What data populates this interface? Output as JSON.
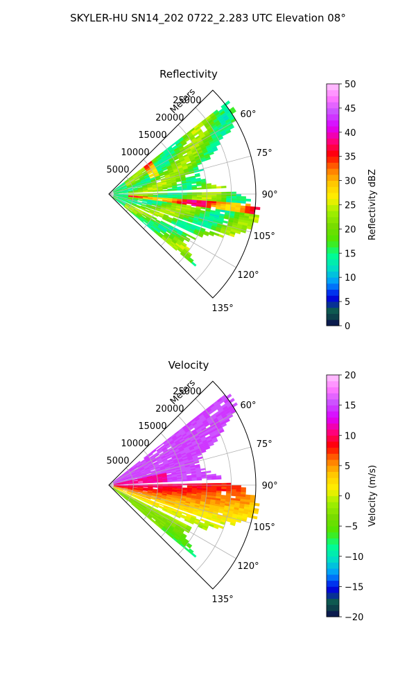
{
  "figure": {
    "suptitle": "SKYLER-HU  SN14_202  0722_2.283 UTC Elevation 08°"
  },
  "chart_data": [
    {
      "type": "polar-sector",
      "title": "Reflectivity",
      "radial_label": "Meters",
      "radial_ticks": [
        5000,
        10000,
        15000,
        20000,
        25000
      ],
      "radial_tick_labels": [
        "5000",
        "10000",
        "15000",
        "20000",
        "25000"
      ],
      "rlim": [
        0,
        30000
      ],
      "theta_range_deg": [
        45,
        135
      ],
      "theta_zero": "north",
      "theta_direction": "clockwise",
      "theta_ticks": [
        60,
        75,
        90,
        105,
        120,
        135
      ],
      "theta_tick_labels": [
        "60°",
        "75°",
        "90°",
        "105°",
        "120°",
        "135°"
      ],
      "grid": true,
      "data_coverage_deg": [
        52,
        130
      ],
      "field_pattern": "mostly 15-25 dBZ; higher 25-40 dBZ cells near 10000 m and along ~96°",
      "beam_gaps_deg": [
        88,
        109.5,
        116
      ],
      "colorbar": {
        "label": "Reflectivity dBZ",
        "range": [
          0,
          50
        ],
        "ticks": [
          0,
          5,
          10,
          15,
          20,
          25,
          30,
          35,
          40,
          45,
          50
        ],
        "tick_labels": [
          "0",
          "5",
          "10",
          "15",
          "20",
          "25",
          "30",
          "35",
          "40",
          "45",
          "50"
        ],
        "levels": 40,
        "colors": [
          "#0a0a50",
          "#0f5f46",
          "#0000e6",
          "#0096ff",
          "#00dcc8",
          "#00ff90",
          "#50e600",
          "#78dc00",
          "#a0f000",
          "#fff000",
          "#ffc800",
          "#ff7800",
          "#ff0000",
          "#ff0080",
          "#dc00ff",
          "#c850ff",
          "#ff78ff",
          "#ffc8ff"
        ]
      }
    },
    {
      "type": "polar-sector",
      "title": "Velocity",
      "radial_label": "Meters",
      "radial_ticks": [
        5000,
        10000,
        15000,
        20000,
        25000
      ],
      "radial_tick_labels": [
        "5000",
        "10000",
        "15000",
        "20000",
        "25000"
      ],
      "rlim": [
        0,
        30000
      ],
      "theta_range_deg": [
        45,
        135
      ],
      "theta_zero": "north",
      "theta_direction": "clockwise",
      "theta_ticks": [
        60,
        75,
        90,
        105,
        120,
        135
      ],
      "theta_tick_labels": [
        "60°",
        "75°",
        "90°",
        "105°",
        "120°",
        "135°"
      ],
      "grid": true,
      "data_coverage_deg": [
        52,
        130
      ],
      "field_pattern": "about +15 m/s north of 88°, +10 near radar at 80-88°, decreasing from +12 to -5 m/s between 90° and 130°",
      "beam_gaps_deg": [
        88,
        109.5,
        116
      ],
      "colorbar": {
        "label": "Velocity (m/s)",
        "range": [
          -20,
          20
        ],
        "ticks": [
          -20,
          -15,
          -10,
          -5,
          0,
          5,
          10,
          15,
          20
        ],
        "tick_labels": [
          "−20",
          "−15",
          "−10",
          "−5",
          "0",
          "5",
          "10",
          "15",
          "20"
        ],
        "levels": 40,
        "colors": [
          "#0a0a50",
          "#0f5f46",
          "#0000e6",
          "#0096ff",
          "#00dcc8",
          "#00ff90",
          "#50e600",
          "#78dc00",
          "#a0f000",
          "#fff000",
          "#ffc800",
          "#ff7800",
          "#ff0000",
          "#ff0080",
          "#dc00ff",
          "#c850ff",
          "#ff78ff",
          "#ffc8ff"
        ]
      }
    }
  ]
}
